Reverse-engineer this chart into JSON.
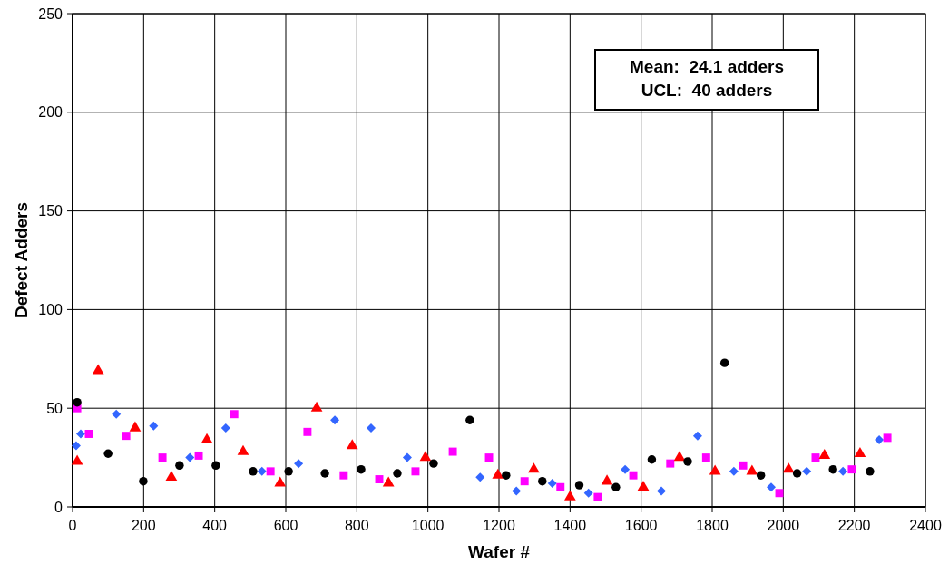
{
  "chart_data": {
    "type": "scatter",
    "xlabel": "Wafer #",
    "ylabel": "Defect Adders",
    "annotations": [
      "Mean:  24.1 adders",
      "UCL:  40 adders"
    ],
    "xlim": [
      0,
      2400
    ],
    "xticks": [
      0,
      200,
      400,
      600,
      800,
      1000,
      1200,
      1400,
      1600,
      1800,
      2000,
      2200,
      2400
    ],
    "ylim": [
      0,
      250
    ],
    "yticks": [
      0,
      50,
      100,
      150,
      200,
      250
    ],
    "grid": true,
    "series": [
      {
        "color": "#3366ff",
        "marker": "diamond",
        "x": [
          10,
          23,
          123,
          228,
          330,
          431,
          533,
          636,
          738,
          840,
          942,
          1147,
          1249,
          1350,
          1452,
          1555,
          1657,
          1759,
          1861,
          1966,
          2066,
          2168,
          2270
        ],
        "values": [
          31,
          37,
          47,
          41,
          25,
          40,
          18,
          22,
          44,
          40,
          25,
          15,
          8,
          12,
          7,
          19,
          8,
          36,
          18,
          10,
          18,
          18,
          34
        ]
      },
      {
        "color": "#ff00ff",
        "marker": "square",
        "x": [
          13,
          46,
          151,
          253,
          355,
          455,
          557,
          661,
          763,
          863,
          965,
          1070,
          1172,
          1272,
          1373,
          1478,
          1578,
          1682,
          1783,
          1887,
          1989,
          2091,
          2193,
          2293
        ],
        "values": [
          50,
          37,
          36,
          25,
          26,
          47,
          18,
          38,
          16,
          14,
          18,
          28,
          25,
          13,
          10,
          5,
          16,
          22,
          25,
          21,
          7,
          25,
          19,
          35
        ]
      },
      {
        "color": "#ff0000",
        "marker": "triangle",
        "x": [
          13,
          72,
          176,
          278,
          378,
          480,
          584,
          687,
          787,
          889,
          993,
          1197,
          1298,
          1400,
          1504,
          1606,
          1708,
          1808,
          1912,
          2015,
          2116,
          2216
        ],
        "values": [
          23,
          69,
          40,
          15,
          34,
          28,
          12,
          50,
          31,
          12,
          25,
          16,
          19,
          5,
          13,
          10,
          25,
          18,
          18,
          19,
          26,
          27
        ]
      },
      {
        "color": "#000000",
        "marker": "circle",
        "x": [
          13,
          100,
          199,
          301,
          403,
          508,
          608,
          710,
          812,
          914,
          1016,
          1118,
          1220,
          1322,
          1426,
          1529,
          1630,
          1731,
          1835,
          1937,
          2039,
          2140,
          2244
        ],
        "values": [
          53,
          27,
          13,
          21,
          21,
          18,
          18,
          17,
          19,
          17,
          22,
          44,
          16,
          13,
          11,
          10,
          24,
          23,
          73,
          16,
          17,
          19,
          18
        ]
      }
    ]
  }
}
